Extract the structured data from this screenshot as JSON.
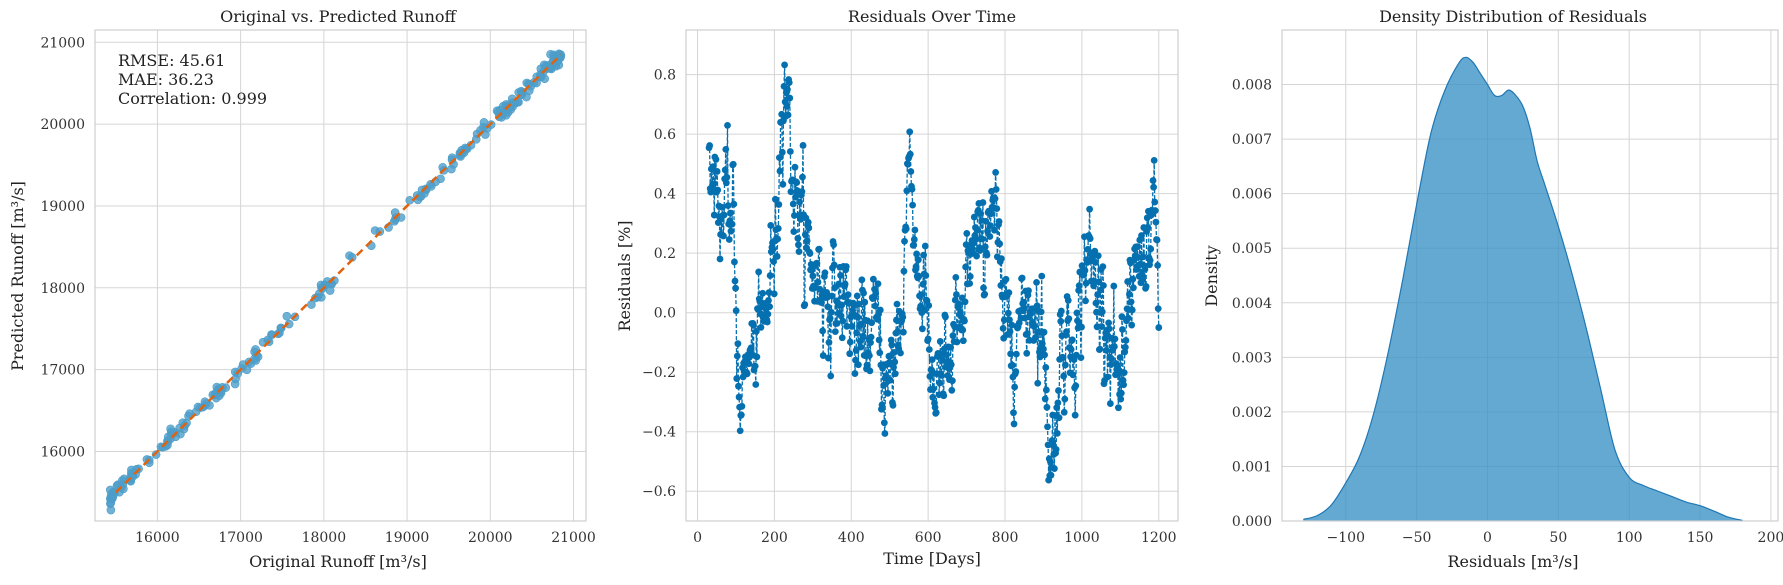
{
  "colors": {
    "scatter": "#4c9dc9",
    "identity_line": "#e0630f",
    "residual_line": "#0570b0",
    "kde_fill": "#3891c4",
    "kde_edge": "#1f77b4",
    "grid": "#d5d5d5",
    "spine": "#cfcfcf"
  },
  "chart_data": [
    {
      "type": "scatter",
      "title": "Original vs. Predicted Runoff",
      "xlabel": "Original Runoff [m³/s]",
      "ylabel": "Predicted Runoff [m³/s]",
      "xlim": [
        15250,
        21150
      ],
      "ylim": [
        15150,
        21150
      ],
      "xticks": [
        16000,
        17000,
        18000,
        19000,
        20000,
        21000
      ],
      "yticks": [
        16000,
        17000,
        18000,
        19000,
        20000,
        21000
      ],
      "grid": true,
      "annotations": [
        "RMSE: 45.61",
        "MAE: 36.23",
        "Correlation: 0.999"
      ],
      "identity_line": {
        "from": [
          15500,
          15500
        ],
        "to": [
          20850,
          20850
        ]
      },
      "points_summary": {
        "n": 240,
        "x_range": [
          15430,
          20850
        ],
        "noise_sd": 45
      }
    },
    {
      "type": "line",
      "title": "Residuals Over Time",
      "xlabel": "Time [Days]",
      "ylabel": "Residuals [%]",
      "xlim": [
        -30,
        1250
      ],
      "ylim": [
        -0.7,
        0.95
      ],
      "xticks": [
        0,
        200,
        400,
        600,
        800,
        1000,
        1200
      ],
      "yticks": [
        -0.6,
        -0.4,
        -0.2,
        0.0,
        0.2,
        0.4,
        0.6,
        0.8
      ],
      "grid": true,
      "x_range": [
        30,
        1200
      ],
      "anchors": [
        [
          30,
          0.55
        ],
        [
          60,
          0.35
        ],
        [
          90,
          0.32
        ],
        [
          110,
          -0.25
        ],
        [
          140,
          -0.15
        ],
        [
          170,
          -0.05
        ],
        [
          200,
          0.2
        ],
        [
          225,
          0.8
        ],
        [
          260,
          0.35
        ],
        [
          300,
          0.15
        ],
        [
          340,
          0.05
        ],
        [
          380,
          0.05
        ],
        [
          420,
          -0.1
        ],
        [
          460,
          -0.05
        ],
        [
          500,
          -0.25
        ],
        [
          530,
          0.0
        ],
        [
          550,
          0.5
        ],
        [
          580,
          0.1
        ],
        [
          620,
          -0.25
        ],
        [
          650,
          -0.2
        ],
        [
          680,
          -0.1
        ],
        [
          710,
          0.2
        ],
        [
          740,
          0.2
        ],
        [
          765,
          0.4
        ],
        [
          800,
          -0.05
        ],
        [
          830,
          -0.05
        ],
        [
          870,
          0.05
        ],
        [
          900,
          -0.1
        ],
        [
          920,
          -0.5
        ],
        [
          950,
          -0.1
        ],
        [
          990,
          -0.05
        ],
        [
          1010,
          0.2
        ],
        [
          1050,
          0.05
        ],
        [
          1080,
          -0.1
        ],
        [
          1100,
          -0.3
        ],
        [
          1140,
          0.15
        ],
        [
          1170,
          0.25
        ],
        [
          1190,
          0.3
        ],
        [
          1200,
          0.05
        ]
      ]
    },
    {
      "type": "area",
      "title": "Density Distribution of Residuals",
      "xlabel": "Residuals [m³/s]",
      "ylabel": "Density",
      "xlim": [
        -145,
        205
      ],
      "ylim": [
        0,
        0.009
      ],
      "xticks": [
        -100,
        -50,
        0,
        50,
        100,
        150,
        200
      ],
      "yticks": [
        0.0,
        0.001,
        0.002,
        0.003,
        0.004,
        0.005,
        0.006,
        0.007,
        0.008
      ],
      "grid": true,
      "x": [
        -130,
        -120,
        -110,
        -100,
        -90,
        -80,
        -70,
        -60,
        -50,
        -40,
        -30,
        -20,
        -15,
        -10,
        -5,
        0,
        5,
        10,
        15,
        20,
        25,
        30,
        35,
        40,
        50,
        60,
        70,
        80,
        90,
        100,
        110,
        120,
        130,
        140,
        150,
        160,
        170,
        180
      ],
      "values": [
        3e-05,
        0.0001,
        0.0003,
        0.0007,
        0.0012,
        0.002,
        0.0031,
        0.0044,
        0.0058,
        0.0071,
        0.0079,
        0.0084,
        0.0085,
        0.0084,
        0.0082,
        0.008,
        0.0078,
        0.0078,
        0.0079,
        0.0078,
        0.0076,
        0.0072,
        0.0066,
        0.0062,
        0.0054,
        0.0045,
        0.0035,
        0.0024,
        0.0013,
        0.0008,
        0.00065,
        0.00055,
        0.00045,
        0.00035,
        0.00028,
        0.00018,
        7e-05,
        1e-05
      ]
    }
  ]
}
